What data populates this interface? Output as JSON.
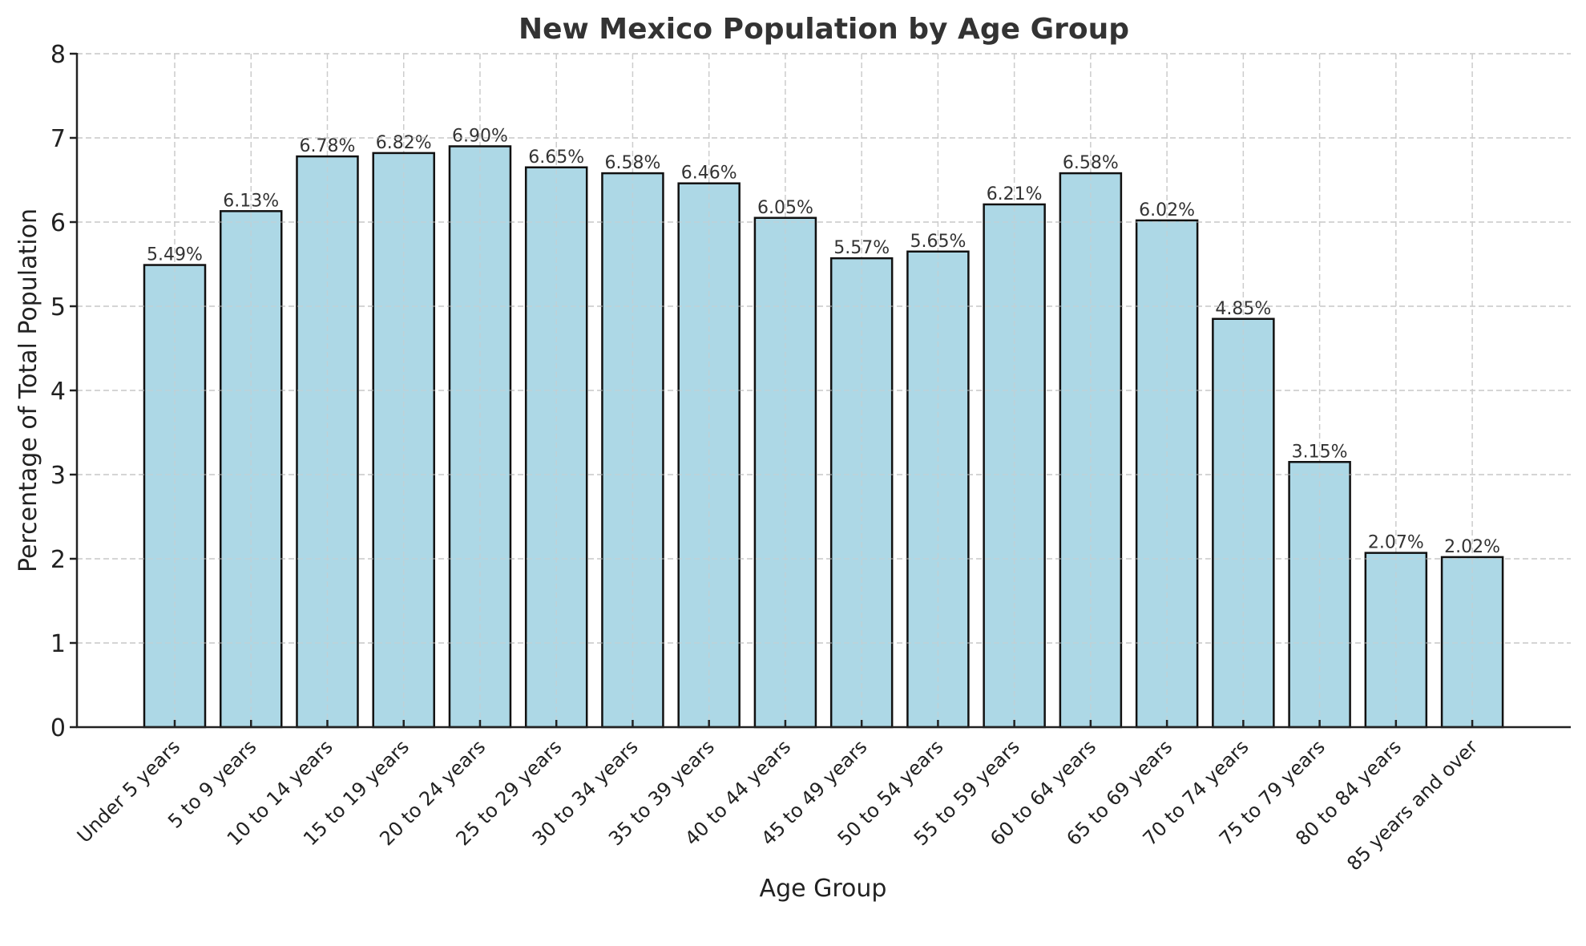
{
  "chart_data": {
    "type": "bar",
    "title": "New Mexico Population by Age Group",
    "xlabel": "Age Group",
    "ylabel": "Percentage of Total Population",
    "ylim": [
      0,
      8
    ],
    "yticks": [
      0,
      1,
      2,
      3,
      4,
      5,
      6,
      7,
      8
    ],
    "grid": true,
    "bar_color": "#add8e6",
    "edge_color": "#111111",
    "categories": [
      "Under 5 years",
      "5 to 9 years",
      "10 to 14 years",
      "15 to 19 years",
      "20 to 24 years",
      "25 to 29 years",
      "30 to 34 years",
      "35 to 39 years",
      "40 to 44 years",
      "45 to 49 years",
      "50 to 54 years",
      "55 to 59 years",
      "60 to 64 years",
      "65 to 69 years",
      "70 to 74 years",
      "75 to 79 years",
      "80 to 84 years",
      "85 years and over"
    ],
    "values": [
      5.49,
      6.13,
      6.78,
      6.82,
      6.9,
      6.65,
      6.58,
      6.46,
      6.05,
      5.57,
      5.65,
      6.21,
      6.58,
      6.02,
      4.85,
      3.15,
      2.07,
      2.02
    ],
    "data_labels": [
      "5.49%",
      "6.13%",
      "6.78%",
      "6.82%",
      "6.90%",
      "6.65%",
      "6.58%",
      "6.46%",
      "6.05%",
      "5.57%",
      "5.65%",
      "6.21%",
      "6.58%",
      "6.02%",
      "4.85%",
      "3.15%",
      "2.07%",
      "2.02%"
    ]
  }
}
